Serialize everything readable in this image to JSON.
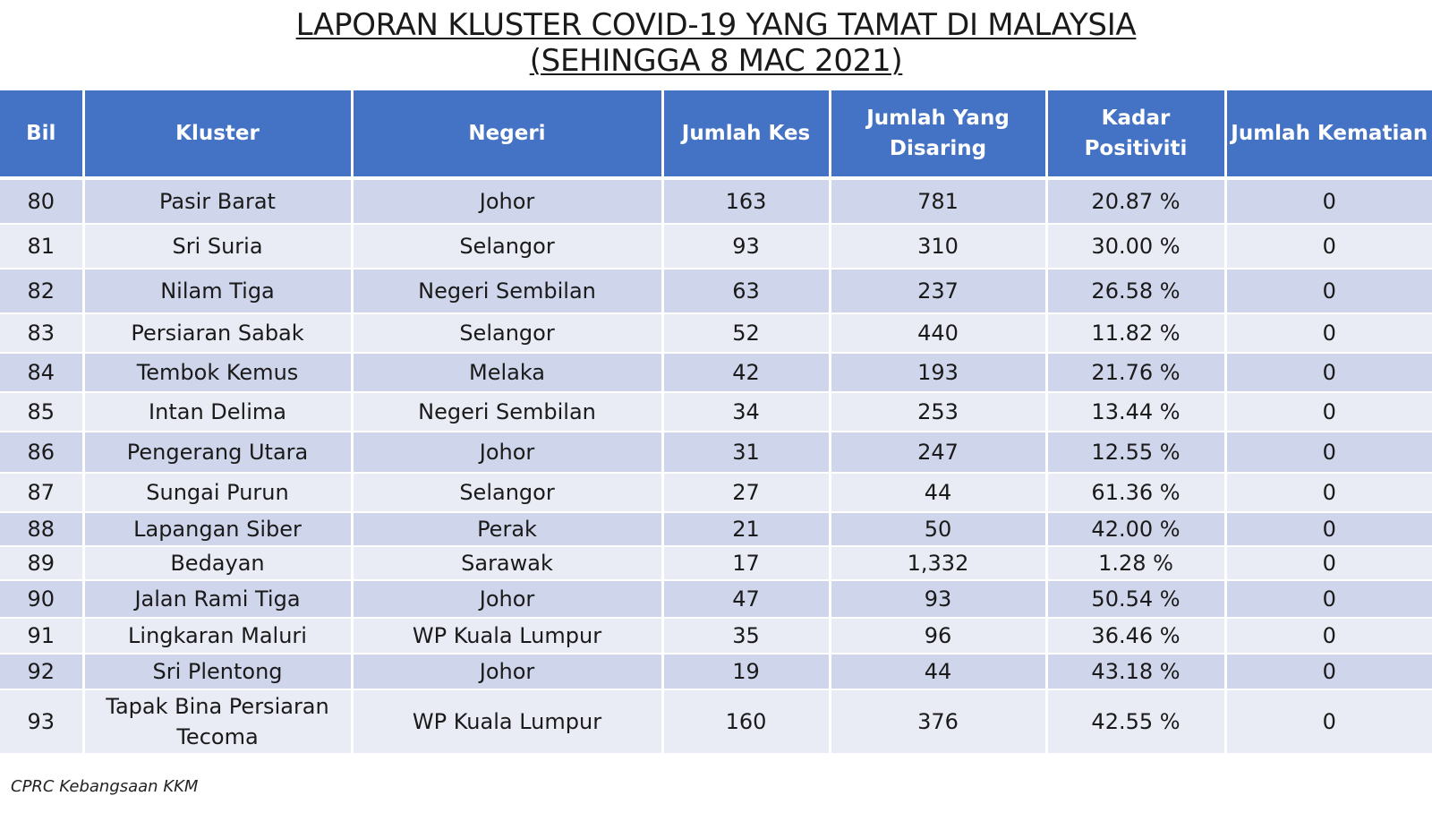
{
  "title": {
    "line1": "LAPORAN KLUSTER COVID-19 YANG TAMAT DI MALAYSIA",
    "line2": "(SEHINGGA  8 MAC 2021)"
  },
  "table": {
    "headers": [
      "Bil",
      "Kluster",
      "Negeri",
      "Jumlah Kes",
      "Jumlah Yang Disaring",
      "Kadar Positiviti",
      "Jumlah Kematian"
    ],
    "rows": [
      [
        "80",
        "Pasir Barat",
        "Johor",
        "163",
        "781",
        "20.87 %",
        "0"
      ],
      [
        "81",
        "Sri Suria",
        "Selangor",
        "93",
        "310",
        "30.00 %",
        "0"
      ],
      [
        "82",
        "Nilam Tiga",
        "Negeri Sembilan",
        "63",
        "237",
        "26.58 %",
        "0"
      ],
      [
        "83",
        "Persiaran Sabak",
        "Selangor",
        "52",
        "440",
        "11.82 %",
        "0"
      ],
      [
        "84",
        "Tembok Kemus",
        "Melaka",
        "42",
        "193",
        "21.76 %",
        "0"
      ],
      [
        "85",
        "Intan Delima",
        "Negeri Sembilan",
        "34",
        "253",
        "13.44 %",
        "0"
      ],
      [
        "86",
        "Pengerang Utara",
        "Johor",
        "31",
        "247",
        "12.55 %",
        "0"
      ],
      [
        "87",
        "Sungai Purun",
        "Selangor",
        "27",
        "44",
        "61.36 %",
        "0"
      ],
      [
        "88",
        "Lapangan Siber",
        "Perak",
        "21",
        "50",
        "42.00 %",
        "0"
      ],
      [
        "89",
        "Bedayan",
        "Sarawak",
        "17",
        "1,332",
        "1.28 %",
        "0"
      ],
      [
        "90",
        "Jalan Rami Tiga",
        "Johor",
        "47",
        "93",
        "50.54 %",
        "0"
      ],
      [
        "91",
        "Lingkaran Maluri",
        "WP Kuala Lumpur",
        "35",
        "96",
        "36.46 %",
        "0"
      ],
      [
        "92",
        "Sri Plentong",
        "Johor",
        "19",
        "44",
        "43.18 %",
        "0"
      ],
      [
        "93",
        "Tapak Bina Persiaran Tecoma",
        "WP Kuala Lumpur",
        "160",
        "376",
        "42.55 %",
        "0"
      ]
    ]
  },
  "footer": "CPRC Kebangsaan KKM"
}
